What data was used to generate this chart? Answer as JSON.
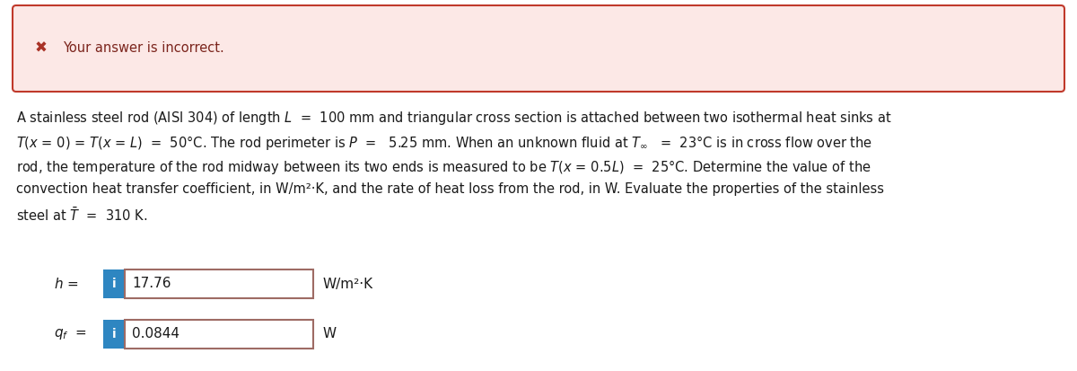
{
  "error_box_bg": "#fce8e6",
  "error_box_border": "#c0392b",
  "error_icon_color": "#a93226",
  "error_text": "Your answer is incorrect.",
  "error_text_color": "#7b241c",
  "page_bg": "#ffffff",
  "main_text_color": "#1a1a1a",
  "problem_lines": [
    "A stainless steel rod (AISI 304) of length $L$  =  100 mm and triangular cross section is attached between two isothermal heat sinks at",
    "$T(x$ = 0) = $T(x$ = $L)$  =  50°C. The rod perimeter is $P$  =   5.25 mm. When an unknown fluid at $T_\\infty$   =  23°C is in cross flow over the",
    "rod, the temperature of the rod midway between its two ends is measured to be $T(x$ = 0.5$L)$  =  25°C. Determine the value of the",
    "convection heat transfer coefficient, in W/m²·K, and the rate of heat loss from the rod, in W. Evaluate the properties of the stainless",
    "steel at $\\bar{T}$  =  310 K."
  ],
  "input_box_border": "#9e6b64",
  "input_box_bg": "#ffffff",
  "info_btn_color": "#2e86c1",
  "info_btn_text": "i",
  "h_label": "$h$ =",
  "h_value": "17.76",
  "h_unit": "W/m²·K",
  "qf_label": "$q_f$  =",
  "qf_value": "0.0844",
  "qf_unit": "W",
  "font_size_body": 10.5,
  "font_size_error": 10.5,
  "font_size_input": 11
}
